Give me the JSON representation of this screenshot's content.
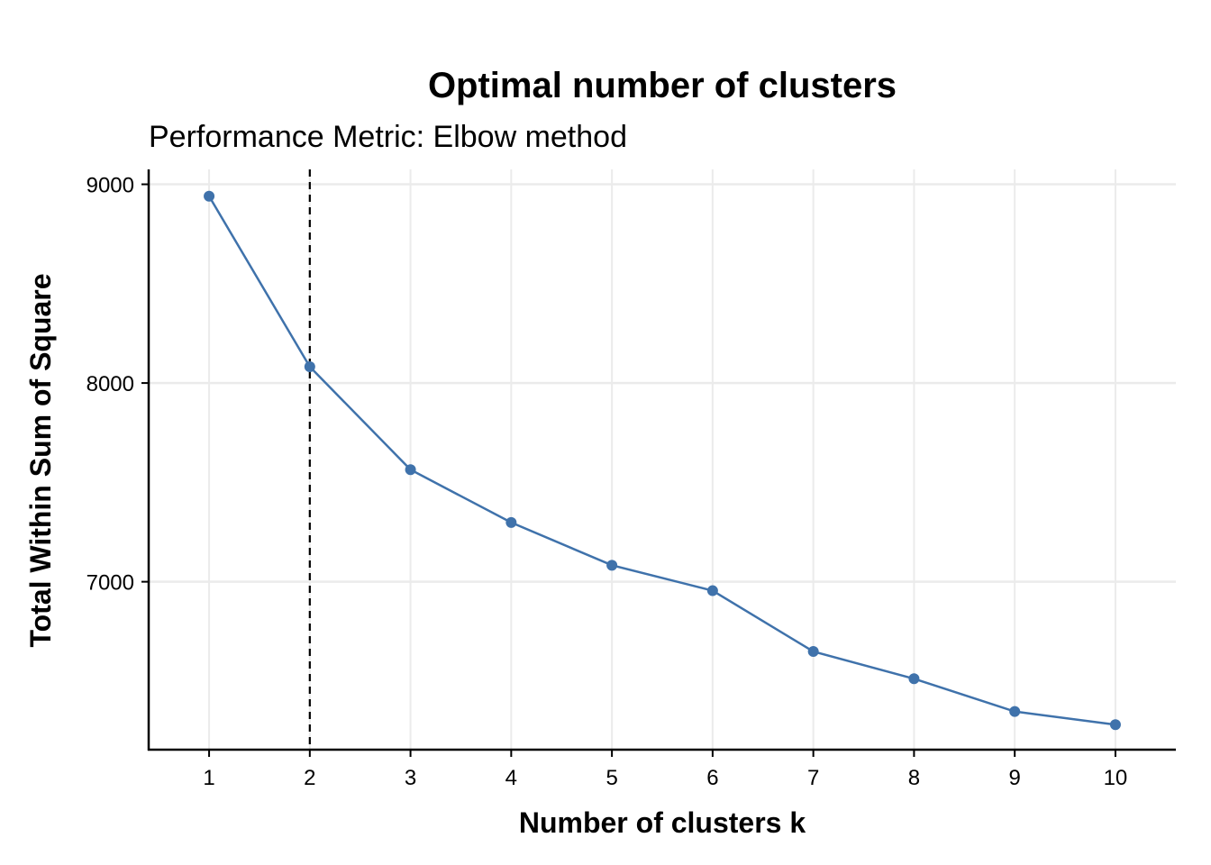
{
  "chart_data": {
    "type": "line",
    "title": "Optimal number of clusters",
    "subtitle": "Performance Metric: Elbow method",
    "xlabel": "Number of clusters k",
    "ylabel": "Total Within Sum of Square",
    "x": [
      1,
      2,
      3,
      4,
      5,
      6,
      7,
      8,
      9,
      10
    ],
    "x_tick_labels": [
      "1",
      "2",
      "3",
      "4",
      "5",
      "6",
      "7",
      "8",
      "9",
      "10"
    ],
    "y": [
      8940,
      8082,
      7564,
      7298,
      7083,
      6955,
      6649,
      6512,
      6347,
      6281
    ],
    "y_ticks": [
      7000,
      8000,
      9000
    ],
    "y_tick_labels": [
      "7000",
      "8000",
      "9000"
    ],
    "xlim": [
      0.4,
      10.6
    ],
    "ylim": [
      6155,
      9075
    ],
    "optimal_k": 2,
    "grid": true,
    "legend": false,
    "colors": {
      "line": "#3F72AB",
      "point": "#3F72AB",
      "grid": "#EBEBEB",
      "axis": "#000000",
      "vline": "#000000"
    }
  }
}
